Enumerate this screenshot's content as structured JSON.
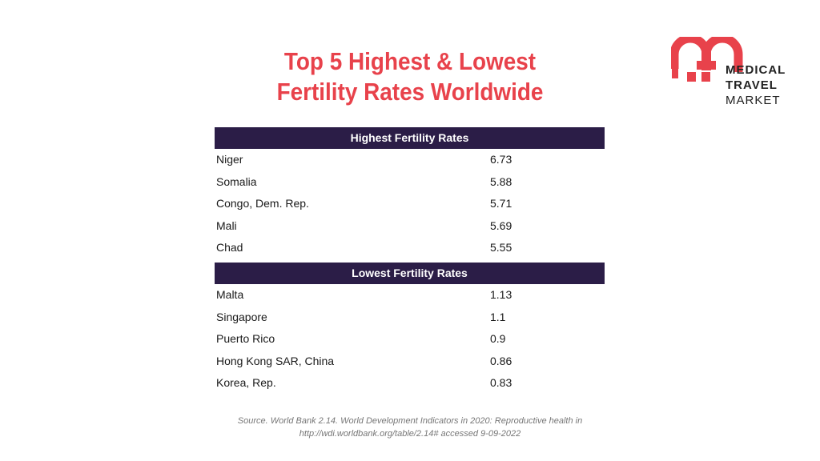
{
  "title": {
    "line1": "Top 5 Highest & Lowest",
    "line2": "Fertility Rates Worldwide"
  },
  "logo": {
    "words": [
      "MEDICAL",
      "TRAVEL",
      "MARKET"
    ],
    "colors": {
      "red": "#e8424b",
      "text": "#222222"
    }
  },
  "sections": [
    {
      "header": "Highest Fertility Rates",
      "rows": [
        {
          "country": "Niger",
          "value": "6.73"
        },
        {
          "country": "Somalia",
          "value": "5.88"
        },
        {
          "country": "Congo, Dem. Rep.",
          "value": "5.71"
        },
        {
          "country": "Mali",
          "value": "5.69"
        },
        {
          "country": "Chad",
          "value": "5.55"
        }
      ]
    },
    {
      "header": "Lowest Fertility Rates",
      "rows": [
        {
          "country": "Malta",
          "value": "1.13"
        },
        {
          "country": "Singapore",
          "value": "1.1"
        },
        {
          "country": "Puerto Rico",
          "value": "0.9"
        },
        {
          "country": "Hong Kong SAR, China",
          "value": "0.86"
        },
        {
          "country": "Korea, Rep.",
          "value": "0.83"
        }
      ]
    }
  ],
  "source": {
    "line1": "Source. World Bank 2.14. World Development Indicators in 2020: Reproductive health in",
    "line2": "http://wdi.worldbank.org/table/2.14# accessed 9-09-2022"
  },
  "colors": {
    "title": "#e8424b",
    "band": "#2b1d47",
    "source": "#777777"
  }
}
